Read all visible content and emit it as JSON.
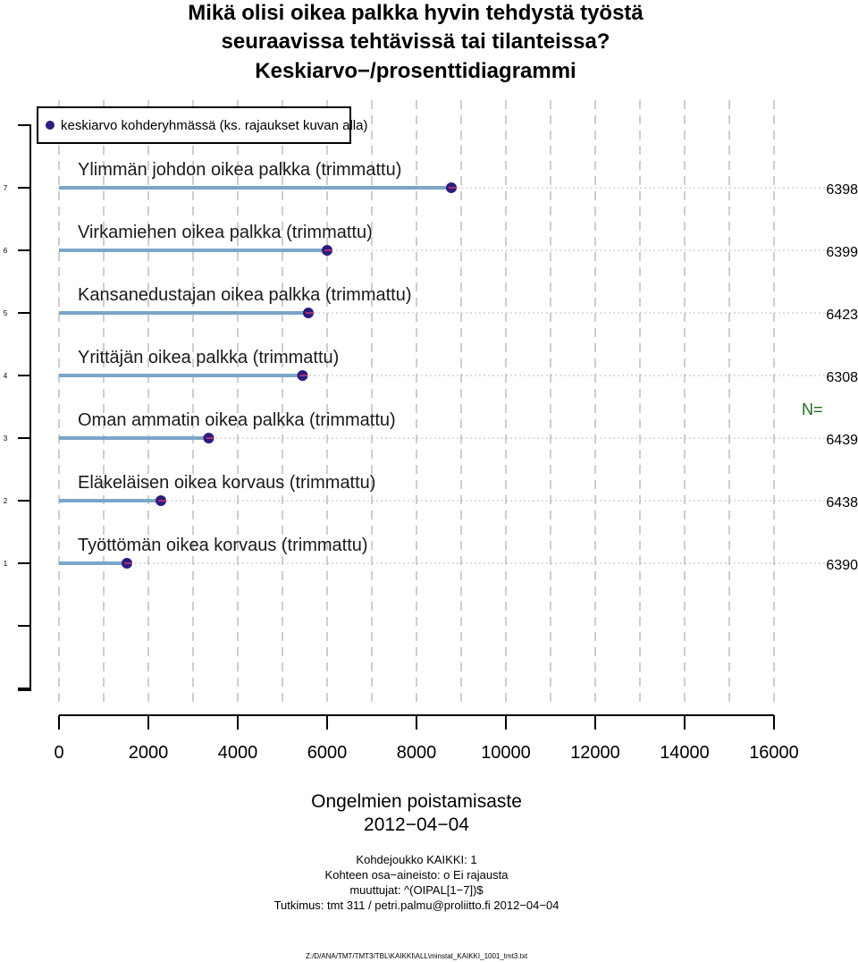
{
  "chart_data": {
    "type": "bar",
    "title_lines": [
      "Mikä olisi oikea palkka hyvin tehdystä työstä",
      "seuraavissa tehtävissä tai tilanteissa?",
      "Keskiarvo−/prosenttidiagrammi"
    ],
    "legend": "keskiarvo kohderyhmässä (ks. rajaukset kuvan alla)",
    "legend_position": "top-left",
    "orientation": "horizontal",
    "categories": [
      "Ylimmän johdon oikea palkka (trimmattu)",
      "Virkamiehen oikea palkka (trimmattu)",
      "Kansanedustajan oikea palkka (trimmattu)",
      "Yrittäjän oikea palkka (trimmattu)",
      "Oman ammatin oikea palkka (trimmattu)",
      "Eläkeläisen oikea korvaus (trimmattu)",
      "Työttömän oikea korvaus (trimmattu)"
    ],
    "y_positions": [
      7,
      6,
      5,
      4,
      3,
      2,
      1
    ],
    "values": [
      8780,
      6000,
      5580,
      5450,
      3350,
      2280,
      1520
    ],
    "n_label": "N=",
    "n_values": [
      "6398",
      "6399",
      "6423",
      "6308",
      "6439",
      "6438",
      "6390"
    ],
    "xlim": [
      0,
      16000
    ],
    "xticks": [
      "0",
      "2000",
      "4000",
      "6000",
      "8000",
      "10000",
      "12000",
      "14000",
      "16000"
    ],
    "xtick_values": [
      0,
      2000,
      4000,
      6000,
      8000,
      10000,
      12000,
      14000,
      16000
    ],
    "yticks": [
      "7",
      "6",
      "5",
      "4",
      "3",
      "2",
      "1"
    ],
    "xlabel": "Ongelmien poistamisaste",
    "date": "2012−04−04",
    "footer_lines": [
      "Kohdejoukko KAIKKI: 1",
      "Kohteen osa−aineisto: o Ei rajausta",
      "muuttujat: ^(OIPAL[1−7])$",
      "Tutkimus: tmt 311 / petri.palmu@proliitto.fi 2012−04−04"
    ],
    "file_path": "Z:/D/ANA/TMT/TMT3/TBL\\KAIKKI\\ALL\\minstat_KAIKKI_1001_tmt3.txt",
    "grid": true,
    "colors": {
      "bar": "#7aa6c8",
      "point": "#2d1b7e",
      "grid": "#bdbdbd",
      "n_label": "#1e6b1e"
    }
  }
}
